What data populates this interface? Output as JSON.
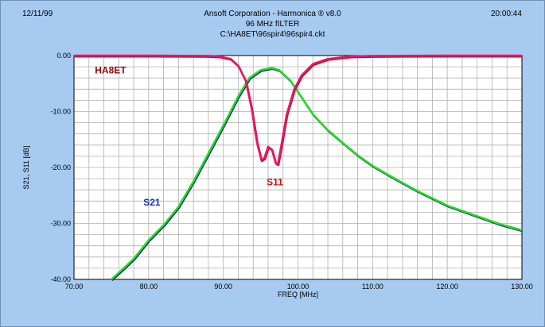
{
  "header": {
    "date": "12/11/99",
    "time": "20:00:44",
    "line1": "Ansoft Corporation - Harmonica ® v8.0",
    "line2": "96 MHz fILTER",
    "line3": "C:\\HA8ET\\96spir4\\96spir4.ckt"
  },
  "colors": {
    "background": "#a6caf0",
    "plot_bg": "#ffffff",
    "grid": "#b0b0b0",
    "s21": "#22dd22",
    "s21_shadow": "#1b2b6b",
    "s11": "#e8156b",
    "s11_shadow": "#c01020",
    "label_s21": "#1a2ec0",
    "label_s11": "#d01010",
    "label_ha8et": "#8b0a0a"
  },
  "chart_data": {
    "type": "line",
    "xlabel": "FREQ [MHz]",
    "ylabel": "S21, S11 [dB]",
    "xlim": [
      70,
      130
    ],
    "ylim": [
      -40,
      0
    ],
    "xticks": [
      "70.00",
      "80.00",
      "90.00",
      "100.00",
      "110.00",
      "120.00",
      "130.00"
    ],
    "yticks": [
      "0.00",
      "-10.00",
      "-20.00",
      "-30.00",
      "-40.00"
    ],
    "grid": true,
    "annotations": [
      {
        "text": "HA8ET",
        "x": 72.8,
        "y": -3.2,
        "color": "label_ha8et"
      },
      {
        "text": "S21",
        "x": 79.3,
        "y": -26.8,
        "color": "label_s21"
      },
      {
        "text": "S11",
        "x": 95.8,
        "y": -23.2,
        "color": "label_s11"
      }
    ],
    "series": [
      {
        "name": "S21",
        "color": "s21",
        "shadow": "s21_shadow",
        "points": [
          [
            75.0,
            -40.0
          ],
          [
            76.5,
            -38.2
          ],
          [
            78.0,
            -36.3
          ],
          [
            80.0,
            -33.0
          ],
          [
            82.0,
            -30.3
          ],
          [
            84.0,
            -27.0
          ],
          [
            86.0,
            -22.5
          ],
          [
            88.0,
            -17.5
          ],
          [
            90.0,
            -12.5
          ],
          [
            92.0,
            -7.3
          ],
          [
            93.5,
            -4.0
          ],
          [
            95.0,
            -2.6
          ],
          [
            96.5,
            -2.2
          ],
          [
            97.5,
            -2.6
          ],
          [
            99.0,
            -4.5
          ],
          [
            100.5,
            -7.5
          ],
          [
            102.0,
            -10.5
          ],
          [
            104.0,
            -13.3
          ],
          [
            106.0,
            -15.6
          ],
          [
            108.0,
            -17.8
          ],
          [
            110.0,
            -19.7
          ],
          [
            113.0,
            -22.0
          ],
          [
            116.0,
            -24.2
          ],
          [
            120.0,
            -26.8
          ],
          [
            124.0,
            -28.7
          ],
          [
            127.0,
            -30.1
          ],
          [
            130.0,
            -31.2
          ]
        ]
      },
      {
        "name": "S11",
        "color": "s11",
        "shadow": "s11_shadow",
        "points": [
          [
            70.0,
            0.0
          ],
          [
            80.0,
            0.0
          ],
          [
            88.0,
            -0.05
          ],
          [
            89.5,
            -0.15
          ],
          [
            91.0,
            -0.6
          ],
          [
            92.0,
            -1.8
          ],
          [
            93.0,
            -4.5
          ],
          [
            93.8,
            -9.5
          ],
          [
            94.5,
            -15.5
          ],
          [
            95.1,
            -18.7
          ],
          [
            95.5,
            -18.3
          ],
          [
            96.0,
            -16.3
          ],
          [
            96.5,
            -16.8
          ],
          [
            97.0,
            -19.2
          ],
          [
            97.3,
            -19.4
          ],
          [
            97.8,
            -15.8
          ],
          [
            98.5,
            -10.5
          ],
          [
            99.5,
            -6.0
          ],
          [
            100.5,
            -3.5
          ],
          [
            102.0,
            -1.5
          ],
          [
            104.0,
            -0.6
          ],
          [
            107.0,
            -0.15
          ],
          [
            110.0,
            -0.05
          ],
          [
            120.0,
            0.0
          ],
          [
            130.0,
            0.0
          ]
        ]
      }
    ]
  }
}
